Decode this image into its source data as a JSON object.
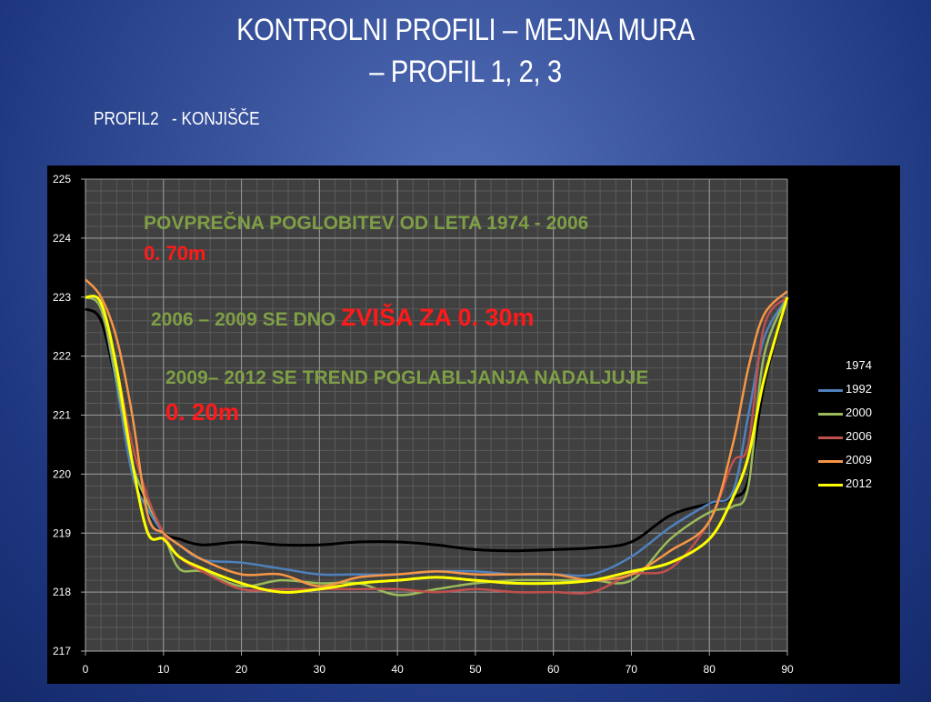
{
  "slide": {
    "title_line1": "KONTROLNI PROFILI – MEJNA MURA",
    "title_line2": "– PROFIL 1, 2, 3",
    "subtitle": "PROFIL2   - KONJIŠČE"
  },
  "annotations": {
    "a1_green": "POVPREČNA POGLOBITEV OD LETA 1974 - 2006",
    "a1_red": "0. 70m",
    "a2_green": "2006 – 2009 SE DNO ",
    "a2_red": "ZVIŠA ZA 0. 30m",
    "a3_green": "2009– 2012 SE  TREND POGLABLJANJA NADALJUJE",
    "a3_red": "0. 20m"
  },
  "legend": [
    {
      "label": "1974",
      "color": "#000000"
    },
    {
      "label": "1992",
      "color": "#4f81bd"
    },
    {
      "label": "2000",
      "color": "#9bbb59"
    },
    {
      "label": "2006",
      "color": "#c0504d"
    },
    {
      "label": "2009",
      "color": "#f79646"
    },
    {
      "label": "2012",
      "color": "#ffff00"
    }
  ],
  "chart_data": {
    "type": "line",
    "title": "",
    "xlabel": "",
    "ylabel": "",
    "xlim": [
      0,
      90
    ],
    "ylim": [
      217,
      225
    ],
    "x_ticks": [
      "0",
      "10",
      "20",
      "30",
      "40",
      "50",
      "60",
      "70",
      "80",
      "90"
    ],
    "y_ticks": [
      "217",
      "218",
      "219",
      "220",
      "221",
      "222",
      "223",
      "224",
      "225"
    ],
    "grid": true,
    "legend_position": "right",
    "x": [
      0,
      2,
      4,
      6,
      8,
      10,
      12,
      15,
      20,
      25,
      30,
      35,
      40,
      45,
      50,
      55,
      60,
      65,
      70,
      75,
      80,
      83,
      85,
      87,
      90
    ],
    "series": [
      {
        "name": "1974",
        "color": "#000000",
        "values": [
          222.8,
          222.6,
          221.5,
          220.2,
          219.4,
          219.0,
          218.9,
          218.8,
          218.85,
          218.8,
          218.8,
          218.85,
          218.85,
          218.8,
          218.72,
          218.7,
          218.72,
          218.75,
          218.85,
          219.3,
          219.5,
          219.6,
          219.9,
          221.5,
          223.0
        ]
      },
      {
        "name": "1992",
        "color": "#4f81bd",
        "values": [
          223.0,
          222.8,
          221.5,
          220.0,
          219.4,
          219.0,
          218.8,
          218.55,
          218.5,
          218.4,
          218.3,
          218.3,
          218.3,
          218.35,
          218.35,
          218.3,
          218.3,
          218.3,
          218.6,
          219.1,
          219.5,
          219.7,
          221.0,
          222.3,
          223.0
        ]
      },
      {
        "name": "2000",
        "color": "#9bbb59",
        "values": [
          223.0,
          222.8,
          221.6,
          220.2,
          219.5,
          219.0,
          218.4,
          218.35,
          218.1,
          218.2,
          218.15,
          218.15,
          217.95,
          218.05,
          218.15,
          218.2,
          218.2,
          218.2,
          218.2,
          218.9,
          219.35,
          219.45,
          219.8,
          222.0,
          223.0
        ]
      },
      {
        "name": "2006",
        "color": "#c0504d",
        "values": [
          223.0,
          222.9,
          221.8,
          220.5,
          219.6,
          219.0,
          218.6,
          218.35,
          218.05,
          218.05,
          218.05,
          218.05,
          218.05,
          218.0,
          218.05,
          218.0,
          218.0,
          218.0,
          218.3,
          218.4,
          219.2,
          220.2,
          220.5,
          222.5,
          223.0
        ]
      },
      {
        "name": "2009",
        "color": "#f79646",
        "values": [
          223.3,
          223.0,
          222.3,
          221.0,
          219.3,
          219.0,
          218.8,
          218.55,
          218.3,
          218.3,
          218.1,
          218.25,
          218.3,
          218.35,
          218.3,
          218.3,
          218.3,
          218.2,
          218.3,
          218.7,
          219.2,
          220.5,
          221.8,
          222.7,
          223.1
        ]
      },
      {
        "name": "2012",
        "color": "#ffff00",
        "values": [
          223.0,
          222.9,
          221.8,
          220.2,
          219.0,
          218.9,
          218.6,
          218.4,
          218.15,
          218.0,
          218.05,
          218.15,
          218.2,
          218.25,
          218.2,
          218.15,
          218.15,
          218.2,
          218.35,
          218.5,
          218.9,
          219.6,
          220.3,
          221.6,
          223.0
        ]
      }
    ]
  }
}
